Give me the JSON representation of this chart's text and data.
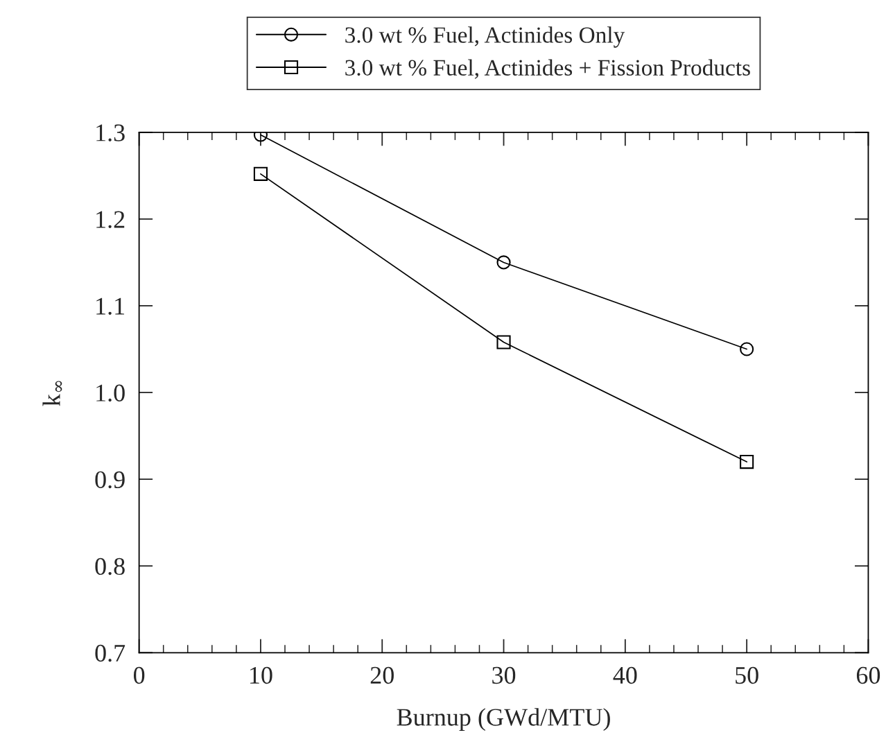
{
  "chart_data": {
    "type": "line",
    "xlabel": "Burnup (GWd/MTU)",
    "ylabel": "k$_{∞}$",
    "x": [
      10,
      30,
      50
    ],
    "series": [
      {
        "name": "3.0 wt % Fuel, Actinides Only",
        "color": "#000000",
        "marker": "circle",
        "values": [
          1.297,
          1.15,
          1.05
        ]
      },
      {
        "name": "3.0 wt % Fuel, Actinides + Fission Products",
        "color": "#000000",
        "marker": "square",
        "values": [
          1.252,
          1.058,
          0.92
        ]
      }
    ],
    "xlim": [
      0,
      60
    ],
    "xticks": [
      0,
      10,
      20,
      30,
      40,
      50,
      60
    ],
    "ylim": [
      0.7,
      1.3
    ],
    "yticks": [
      0.7,
      0.8,
      0.9,
      {
        "value": 1,
        "label": "1.0"
      },
      1.1,
      1.2,
      1.3
    ],
    "grid": false,
    "legend": "top",
    "line_style": "solid"
  }
}
